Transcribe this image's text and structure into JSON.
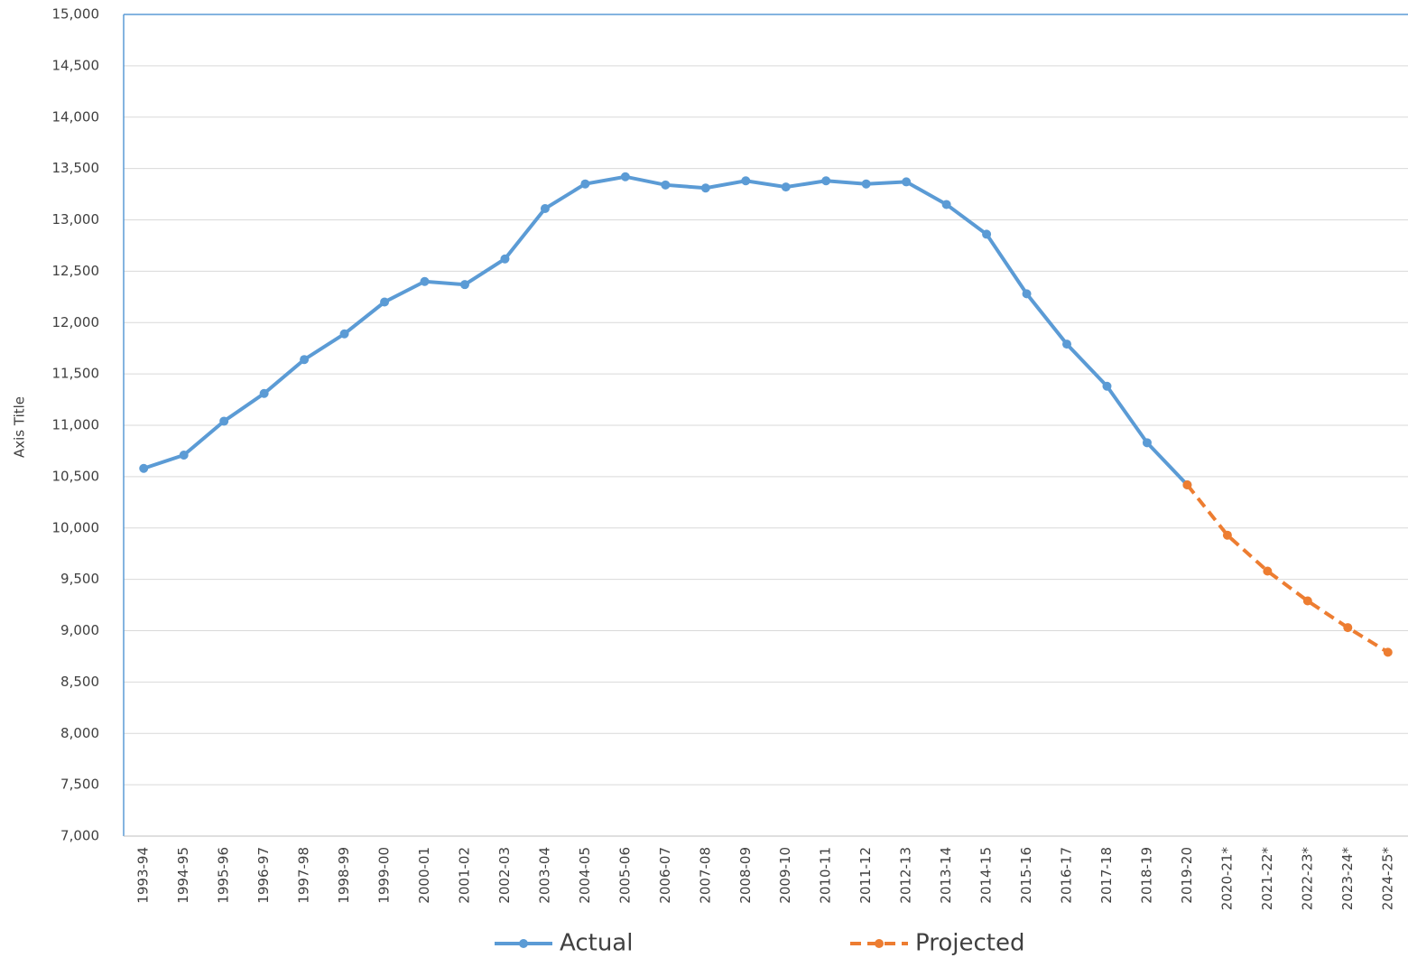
{
  "chart_data": {
    "type": "line",
    "y_axis_label": "Axis Title",
    "categories": [
      "1993-94",
      "1994-95",
      "1995-96",
      "1996-97",
      "1997-98",
      "1998-99",
      "1999-00",
      "2000-01",
      "2001-02",
      "2002-03",
      "2003-04",
      "2004-05",
      "2005-06",
      "2006-07",
      "2007-08",
      "2008-09",
      "2009-10",
      "2010-11",
      "2011-12",
      "2012-13",
      "2013-14",
      "2014-15",
      "2015-16",
      "2016-17",
      "2017-18",
      "2018-19",
      "2019-20",
      "2020-21*",
      "2021-22*",
      "2022-23*",
      "2023-24*",
      "2024-25*"
    ],
    "series": [
      {
        "name": "Actual",
        "color": "#5b9bd5",
        "dashed": false,
        "values": [
          10580,
          10710,
          11040,
          11310,
          11640,
          11890,
          12200,
          12400,
          12370,
          12620,
          13110,
          13350,
          13420,
          13340,
          13310,
          13380,
          13320,
          13380,
          13350,
          13370,
          13150,
          12860,
          12280,
          11790,
          11380,
          10830,
          10420,
          null,
          null,
          null,
          null,
          null
        ]
      },
      {
        "name": "Projected",
        "color": "#ed7d31",
        "dashed": true,
        "values": [
          null,
          null,
          null,
          null,
          null,
          null,
          null,
          null,
          null,
          null,
          null,
          null,
          null,
          null,
          null,
          null,
          null,
          null,
          null,
          null,
          null,
          null,
          null,
          null,
          null,
          null,
          10420,
          9930,
          9580,
          9290,
          9030,
          8790
        ]
      }
    ],
    "ylim": [
      7000,
      15000
    ],
    "yticks": [
      {
        "value": 7000,
        "label": "7,000"
      },
      {
        "value": 7500,
        "label": "7,500"
      },
      {
        "value": 8000,
        "label": "8,000"
      },
      {
        "value": 8500,
        "label": "8,500"
      },
      {
        "value": 9000,
        "label": "9,000"
      },
      {
        "value": 9500,
        "label": "9,500"
      },
      {
        "value": 10000,
        "label": "10,000"
      },
      {
        "value": 10500,
        "label": "10,500"
      },
      {
        "value": 11000,
        "label": "11,000"
      },
      {
        "value": 11500,
        "label": "11,500"
      },
      {
        "value": 12000,
        "label": "12,000"
      },
      {
        "value": 12500,
        "label": "12,500"
      },
      {
        "value": 13000,
        "label": "13,000"
      },
      {
        "value": 13500,
        "label": "13,500"
      },
      {
        "value": 14000,
        "label": "14,000"
      },
      {
        "value": 14500,
        "label": "14,500"
      },
      {
        "value": 15000,
        "label": "15,000"
      }
    ],
    "grid": true,
    "legend": "bottom"
  }
}
